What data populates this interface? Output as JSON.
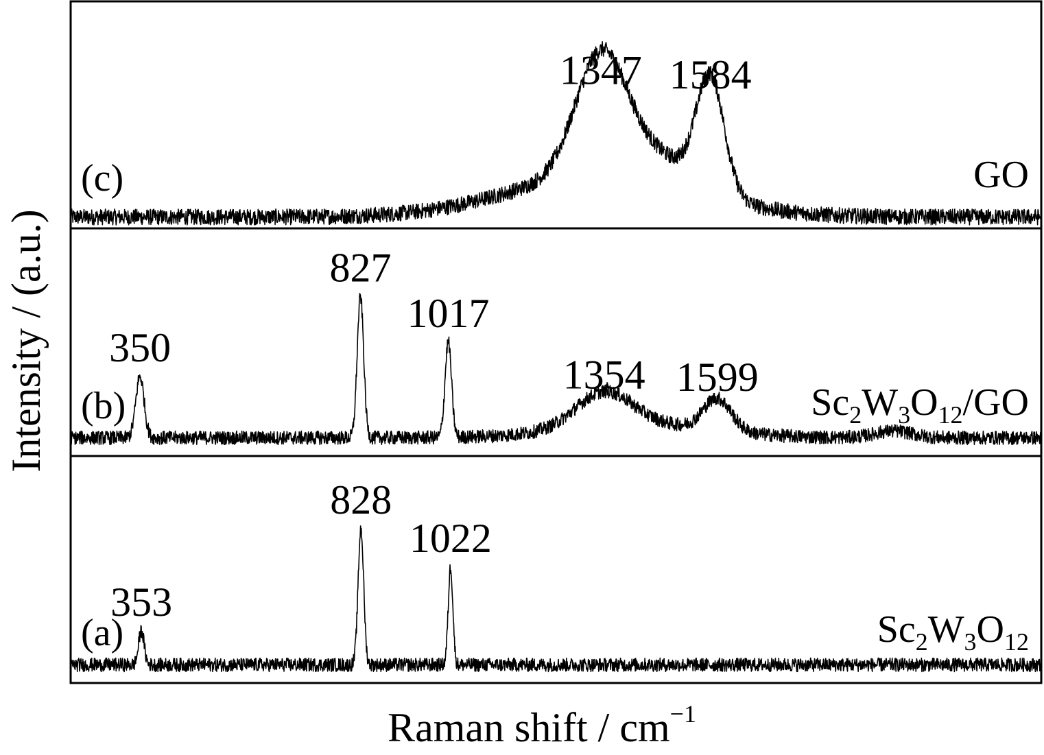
{
  "chart_data": {
    "type": "line",
    "xlabel": "Raman shift / cm",
    "xlabel_superscript": "−1",
    "ylabel": "Intensity / (a.u.)",
    "x_range": [
      200,
      2300
    ],
    "x_ticks_shown": false,
    "y_ticks_shown": false,
    "grid": false,
    "layout": "three stacked panels sharing x axis",
    "panels": [
      {
        "id": "c",
        "panel_label": "(c)",
        "sample_label": {
          "parts": [
            {
              "t": "GO",
              "sub": false
            }
          ]
        },
        "baseline": 0.05,
        "noise": 0.035,
        "ylim": [
          0,
          1.0
        ],
        "peaks": [
          {
            "x": 1347,
            "label": "1347",
            "height": 0.52,
            "width": 55
          },
          {
            "x": 1584,
            "label": "1584",
            "height": 0.5,
            "width": 30
          }
        ],
        "broad": [
          {
            "x": 1350,
            "height": 0.18,
            "width": 200
          },
          {
            "x": 1470,
            "height": 0.12,
            "width": 80
          }
        ]
      },
      {
        "id": "b",
        "panel_label": "(b)",
        "sample_label": {
          "parts": [
            {
              "t": "Sc",
              "sub": false
            },
            {
              "t": "2",
              "sub": true
            },
            {
              "t": "W",
              "sub": false
            },
            {
              "t": "3",
              "sub": true
            },
            {
              "t": "O",
              "sub": false
            },
            {
              "t": "12",
              "sub": true
            },
            {
              "t": "/GO",
              "sub": false
            }
          ]
        },
        "baseline": 0.08,
        "noise": 0.03,
        "ylim": [
          0,
          1.0
        ],
        "peaks": [
          {
            "x": 350,
            "label": "350",
            "height": 0.27,
            "width": 9
          },
          {
            "x": 827,
            "label": "827",
            "height": 0.62,
            "width": 7
          },
          {
            "x": 1017,
            "label": "1017",
            "height": 0.42,
            "width": 7
          },
          {
            "x": 1354,
            "label": "1354",
            "height": 0.15,
            "width": 60
          },
          {
            "x": 1599,
            "label": "1599",
            "height": 0.14,
            "width": 30
          }
        ],
        "broad": [
          {
            "x": 1430,
            "height": 0.06,
            "width": 160
          },
          {
            "x": 1980,
            "height": 0.03,
            "width": 40
          }
        ]
      },
      {
        "id": "a",
        "panel_label": "(a)",
        "sample_label": {
          "parts": [
            {
              "t": "Sc",
              "sub": false
            },
            {
              "t": "2",
              "sub": true
            },
            {
              "t": "W",
              "sub": false
            },
            {
              "t": "3",
              "sub": true
            },
            {
              "t": "O",
              "sub": false
            },
            {
              "t": "12",
              "sub": true
            }
          ]
        },
        "baseline": 0.08,
        "noise": 0.03,
        "ylim": [
          0,
          1.0
        ],
        "peaks": [
          {
            "x": 353,
            "label": "353",
            "height": 0.15,
            "width": 6
          },
          {
            "x": 828,
            "label": "828",
            "height": 0.6,
            "width": 6
          },
          {
            "x": 1022,
            "label": "1022",
            "height": 0.43,
            "width": 5
          }
        ],
        "broad": []
      }
    ]
  }
}
